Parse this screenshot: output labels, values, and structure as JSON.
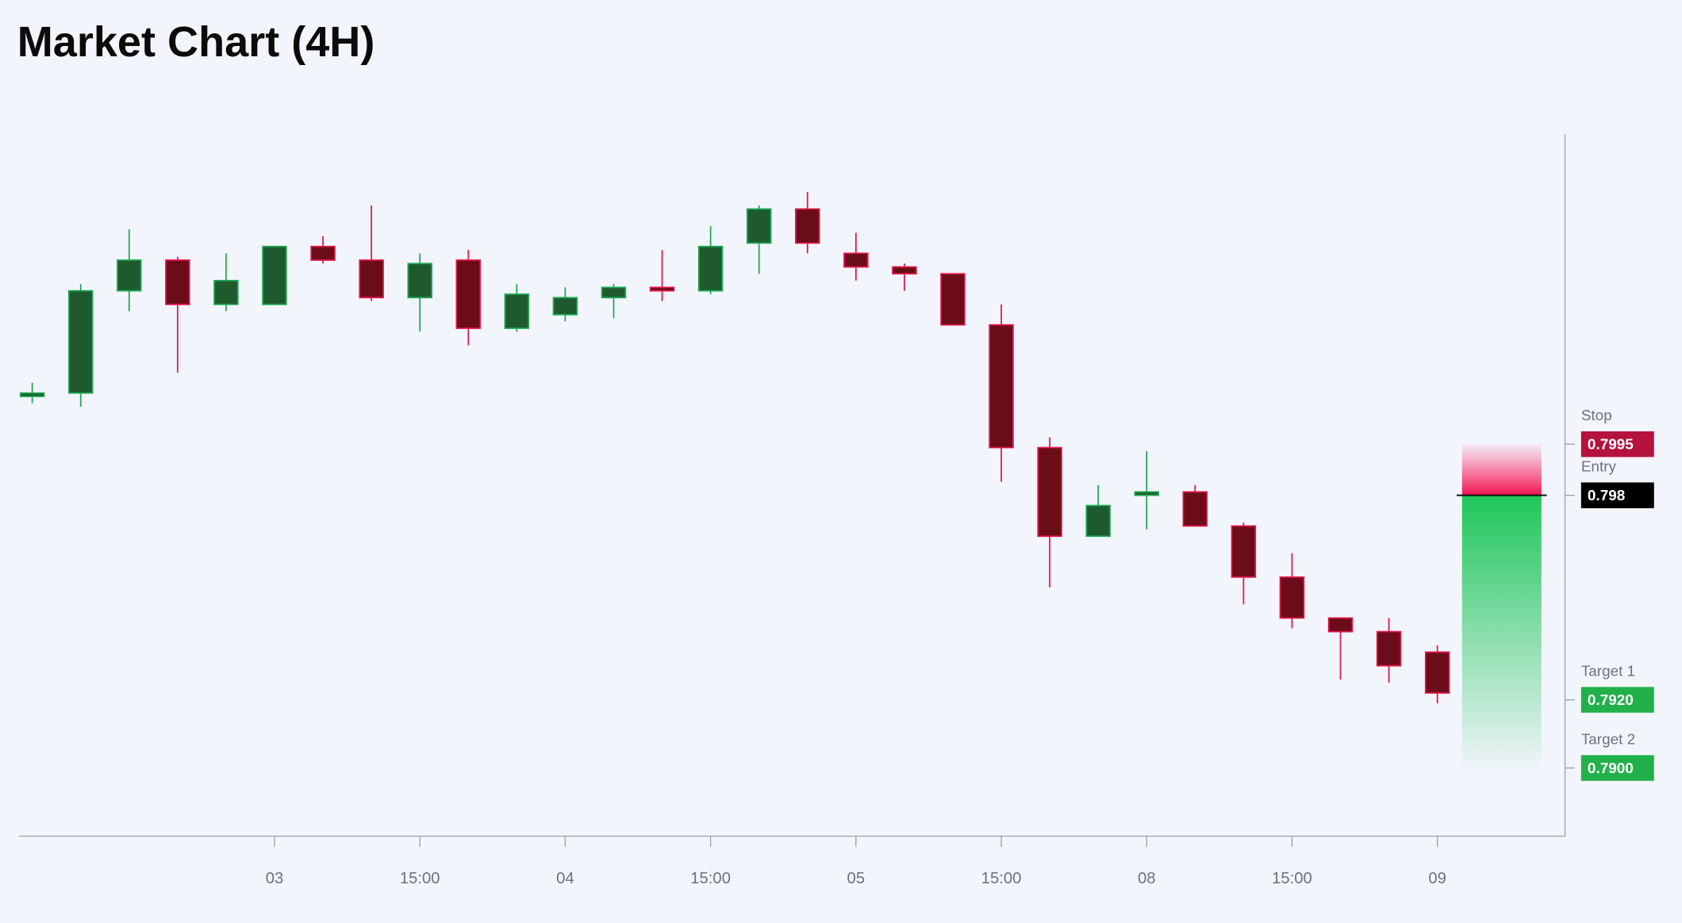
{
  "chart_data": {
    "type": "candlestick",
    "title": "Market Chart (4H)",
    "categories": [
      null,
      null,
      null,
      null,
      null,
      "03",
      null,
      null,
      "15:00",
      null,
      null,
      "04",
      null,
      null,
      "15:00",
      null,
      null,
      "05",
      null,
      null,
      "15:00",
      null,
      null,
      "08",
      null,
      null,
      "15:00",
      null,
      null,
      "09"
    ],
    "open": [
      0.8009,
      0.801,
      0.804,
      0.8049,
      0.8036,
      0.8036,
      0.8053,
      0.8049,
      0.8038,
      0.8049,
      0.8029,
      0.8033,
      0.8038,
      0.8041,
      0.804,
      0.8054,
      0.8064,
      0.8051,
      0.8047,
      0.8045,
      0.803,
      0.7994,
      0.7968,
      0.798,
      0.7981,
      0.7971,
      0.7956,
      0.7944,
      0.794,
      0.7934
    ],
    "high": [
      0.8013,
      0.8042,
      0.8058,
      0.805,
      0.8051,
      0.8053,
      0.8056,
      0.8065,
      0.8051,
      0.8052,
      0.8042,
      0.8041,
      0.8042,
      0.8052,
      0.8059,
      0.8065,
      0.8069,
      0.8057,
      0.8048,
      0.8045,
      0.8036,
      0.7997,
      0.7983,
      0.7993,
      0.7983,
      0.7972,
      0.7963,
      0.7944,
      0.7944,
      0.7936
    ],
    "low": [
      0.8007,
      0.8006,
      0.8034,
      0.8016,
      0.8034,
      0.8036,
      0.8048,
      0.8037,
      0.8028,
      0.8024,
      0.8028,
      0.8031,
      0.8032,
      0.8037,
      0.8039,
      0.8045,
      0.8051,
      0.8043,
      0.804,
      0.803,
      0.7984,
      0.7953,
      0.7968,
      0.797,
      0.7971,
      0.7948,
      0.7941,
      0.7926,
      0.7925,
      0.7919
    ],
    "close": [
      0.801,
      0.804,
      0.8049,
      0.8036,
      0.8043,
      0.8053,
      0.8049,
      0.8038,
      0.8048,
      0.8029,
      0.8039,
      0.8038,
      0.8041,
      0.804,
      0.8053,
      0.8064,
      0.8054,
      0.8047,
      0.8045,
      0.803,
      0.7994,
      0.7968,
      0.7977,
      0.7981,
      0.7971,
      0.7956,
      0.7944,
      0.794,
      0.793,
      0.7922
    ],
    "up_color": "#1fa855",
    "up_fill": "#1f5a2e",
    "down_color": "#e0174c",
    "down_fill": "#6b0d18",
    "ylim": [
      0.788,
      0.8086
    ],
    "levels": [
      {
        "name": "Stop",
        "value": 0.7995,
        "color": "#b5123e"
      },
      {
        "name": "Entry",
        "value": 0.798,
        "color": "#000000"
      },
      {
        "name": "Target 1",
        "value": 0.792,
        "label": "0.7920",
        "color": "#22b04b"
      },
      {
        "name": "Target 2",
        "value": 0.79,
        "label": "0.7900",
        "color": "#22b04b"
      }
    ]
  }
}
